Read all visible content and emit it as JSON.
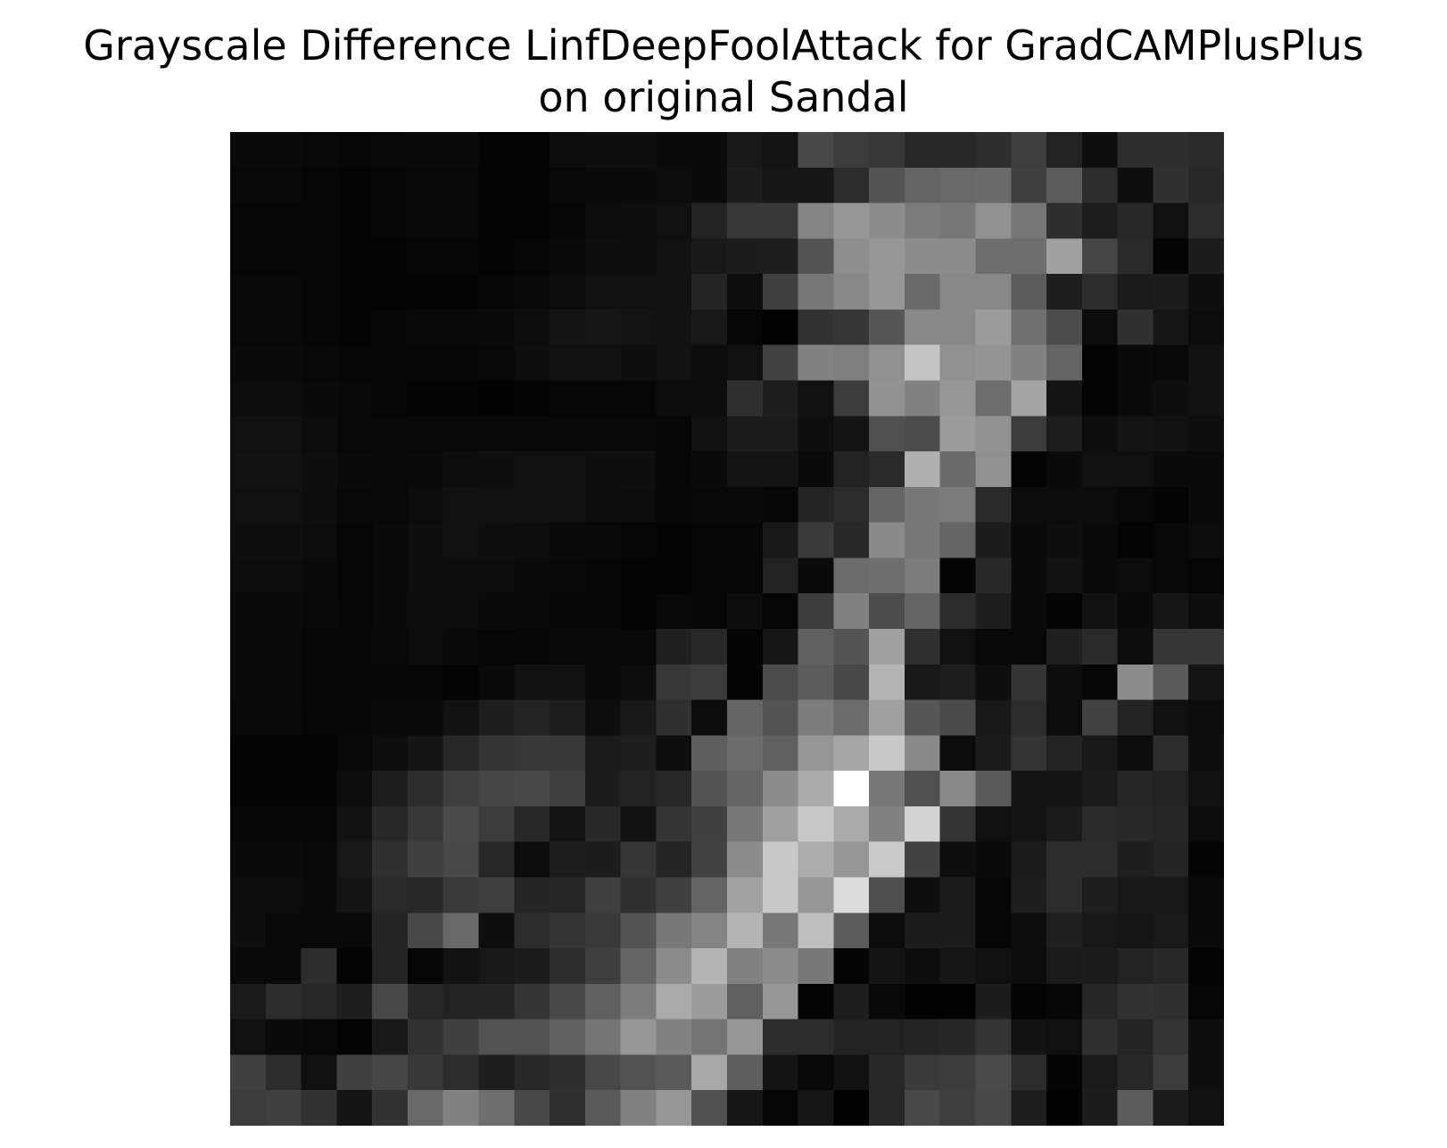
{
  "chart_data": {
    "type": "heatmap",
    "title": "Grayscale Difference LinfDeepFoolAttack for GradCAMPlusPlus\non original Sandal",
    "title_lines": [
      "Grayscale Difference LinfDeepFoolAttack for GradCAMPlusPlus",
      "on original Sandal"
    ],
    "colormap": "gray",
    "axes_visible": false,
    "rows": 28,
    "cols": 28,
    "value_range": [
      0,
      255
    ],
    "values": [
      [
        10,
        10,
        8,
        6,
        8,
        10,
        10,
        4,
        4,
        12,
        14,
        14,
        10,
        10,
        24,
        20,
        72,
        60,
        56,
        40,
        40,
        46,
        62,
        34,
        14,
        46,
        46,
        42
      ],
      [
        8,
        8,
        6,
        4,
        6,
        8,
        8,
        4,
        4,
        8,
        10,
        10,
        12,
        10,
        28,
        22,
        22,
        44,
        84,
        100,
        104,
        106,
        64,
        92,
        44,
        14,
        48,
        40
      ],
      [
        6,
        6,
        6,
        4,
        6,
        8,
        8,
        4,
        4,
        6,
        12,
        14,
        16,
        34,
        56,
        56,
        132,
        150,
        140,
        124,
        120,
        144,
        118,
        46,
        30,
        40,
        16,
        44
      ],
      [
        6,
        6,
        6,
        4,
        4,
        6,
        6,
        4,
        6,
        10,
        14,
        14,
        18,
        24,
        28,
        30,
        84,
        142,
        150,
        140,
        140,
        110,
        110,
        160,
        70,
        42,
        4,
        28
      ],
      [
        8,
        8,
        6,
        4,
        4,
        4,
        4,
        6,
        8,
        12,
        16,
        16,
        18,
        36,
        14,
        64,
        120,
        136,
        150,
        106,
        136,
        136,
        92,
        30,
        44,
        26,
        28,
        14
      ],
      [
        8,
        8,
        6,
        4,
        6,
        8,
        8,
        10,
        12,
        20,
        22,
        20,
        18,
        24,
        6,
        2,
        50,
        54,
        86,
        136,
        136,
        156,
        112,
        76,
        12,
        48,
        22,
        12
      ],
      [
        10,
        10,
        8,
        6,
        6,
        6,
        6,
        8,
        14,
        16,
        16,
        14,
        18,
        14,
        16,
        66,
        130,
        126,
        144,
        196,
        144,
        148,
        130,
        100,
        4,
        10,
        8,
        18
      ],
      [
        12,
        12,
        10,
        8,
        6,
        4,
        4,
        2,
        4,
        6,
        6,
        6,
        12,
        14,
        48,
        30,
        16,
        60,
        146,
        130,
        150,
        110,
        164,
        20,
        4,
        10,
        14,
        18
      ],
      [
        16,
        16,
        12,
        8,
        8,
        8,
        8,
        8,
        8,
        8,
        8,
        8,
        6,
        16,
        28,
        28,
        14,
        20,
        80,
        76,
        156,
        146,
        60,
        30,
        14,
        20,
        18,
        14
      ],
      [
        18,
        18,
        14,
        10,
        8,
        10,
        12,
        14,
        16,
        16,
        14,
        14,
        6,
        10,
        20,
        20,
        10,
        34,
        42,
        176,
        106,
        144,
        4,
        10,
        16,
        16,
        10,
        10
      ],
      [
        16,
        16,
        14,
        8,
        8,
        12,
        16,
        16,
        16,
        16,
        14,
        12,
        6,
        8,
        8,
        6,
        36,
        44,
        100,
        120,
        122,
        42,
        12,
        12,
        12,
        8,
        4,
        10
      ],
      [
        14,
        14,
        12,
        6,
        10,
        14,
        16,
        14,
        12,
        10,
        8,
        6,
        4,
        6,
        6,
        24,
        58,
        40,
        138,
        120,
        100,
        28,
        10,
        14,
        10,
        4,
        8,
        12
      ],
      [
        12,
        12,
        10,
        6,
        10,
        14,
        14,
        12,
        10,
        8,
        6,
        4,
        4,
        6,
        6,
        34,
        10,
        108,
        110,
        124,
        4,
        40,
        10,
        18,
        10,
        12,
        8,
        6
      ],
      [
        10,
        10,
        8,
        6,
        10,
        12,
        12,
        10,
        8,
        6,
        6,
        4,
        8,
        6,
        12,
        6,
        60,
        130,
        76,
        100,
        44,
        30,
        10,
        4,
        18,
        10,
        22,
        14
      ],
      [
        10,
        10,
        6,
        6,
        8,
        12,
        10,
        6,
        6,
        8,
        8,
        8,
        32,
        40,
        4,
        22,
        96,
        84,
        160,
        48,
        16,
        8,
        8,
        32,
        42,
        12,
        54,
        54
      ],
      [
        10,
        10,
        6,
        6,
        6,
        6,
        4,
        10,
        18,
        18,
        10,
        12,
        56,
        60,
        4,
        76,
        92,
        72,
        180,
        24,
        30,
        14,
        52,
        14,
        6,
        140,
        90,
        20
      ],
      [
        8,
        8,
        6,
        6,
        8,
        10,
        18,
        30,
        34,
        30,
        14,
        24,
        48,
        12,
        100,
        84,
        124,
        108,
        160,
        86,
        74,
        24,
        44,
        12,
        66,
        36,
        16,
        12
      ],
      [
        4,
        4,
        4,
        8,
        14,
        20,
        40,
        52,
        56,
        56,
        26,
        30,
        14,
        94,
        108,
        96,
        150,
        166,
        200,
        138,
        12,
        28,
        52,
        36,
        24,
        12,
        44,
        14
      ],
      [
        4,
        4,
        4,
        12,
        30,
        44,
        62,
        70,
        72,
        64,
        28,
        34,
        40,
        84,
        100,
        140,
        170,
        255,
        120,
        80,
        136,
        90,
        20,
        20,
        26,
        38,
        34,
        16
      ],
      [
        6,
        6,
        6,
        18,
        40,
        56,
        74,
        60,
        40,
        20,
        40,
        18,
        52,
        64,
        120,
        160,
        200,
        170,
        130,
        212,
        52,
        16,
        20,
        28,
        42,
        40,
        38,
        12
      ],
      [
        10,
        10,
        8,
        24,
        48,
        64,
        72,
        40,
        12,
        30,
        28,
        54,
        36,
        66,
        140,
        200,
        172,
        150,
        202,
        66,
        14,
        10,
        26,
        44,
        44,
        30,
        36,
        4
      ],
      [
        12,
        12,
        10,
        20,
        42,
        40,
        58,
        62,
        36,
        38,
        64,
        48,
        64,
        100,
        162,
        200,
        150,
        220,
        78,
        14,
        28,
        6,
        30,
        44,
        30,
        24,
        24,
        10
      ],
      [
        14,
        8,
        8,
        8,
        36,
        72,
        104,
        14,
        44,
        52,
        58,
        84,
        120,
        132,
        180,
        120,
        190,
        92,
        12,
        28,
        28,
        6,
        14,
        32,
        24,
        22,
        26,
        10
      ],
      [
        10,
        10,
        44,
        4,
        36,
        6,
        18,
        24,
        28,
        46,
        62,
        100,
        140,
        180,
        130,
        140,
        120,
        4,
        20,
        14,
        22,
        16,
        12,
        26,
        28,
        34,
        40,
        4
      ],
      [
        26,
        44,
        40,
        30,
        72,
        40,
        34,
        36,
        52,
        72,
        96,
        124,
        170,
        156,
        96,
        150,
        4,
        30,
        8,
        2,
        2,
        28,
        4,
        6,
        38,
        50,
        48,
        6
      ],
      [
        16,
        10,
        8,
        4,
        24,
        50,
        64,
        82,
        82,
        96,
        116,
        150,
        130,
        116,
        150,
        44,
        44,
        34,
        34,
        36,
        38,
        52,
        18,
        16,
        48,
        36,
        52,
        14
      ],
      [
        64,
        44,
        16,
        64,
        70,
        56,
        44,
        30,
        40,
        46,
        72,
        82,
        90,
        168,
        94,
        20,
        8,
        18,
        40,
        58,
        60,
        74,
        44,
        4,
        26,
        40,
        60,
        14
      ],
      [
        60,
        64,
        50,
        20,
        50,
        104,
        130,
        110,
        72,
        48,
        90,
        130,
        150,
        80,
        22,
        6,
        22,
        2,
        40,
        72,
        62,
        72,
        30,
        2,
        28,
        92,
        28,
        16
      ]
    ]
  }
}
